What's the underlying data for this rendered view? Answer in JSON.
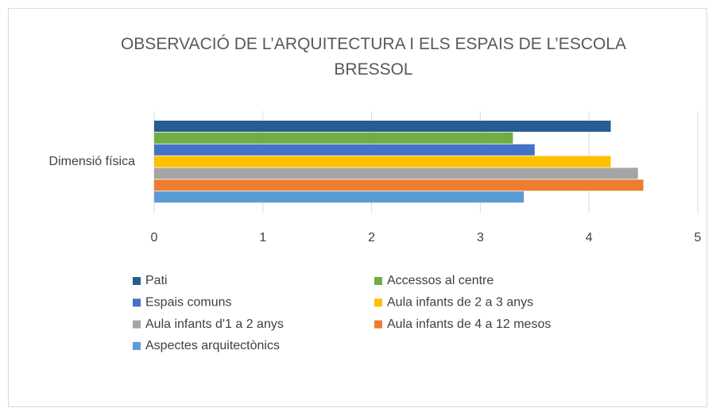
{
  "chart_data": {
    "type": "hbar",
    "title": "OBSERVACIÓ DE L’ARQUITECTURA I ELS ESPAIS DE L’ESCOLA BRESSOL",
    "categories": [
      "Dimensió física"
    ],
    "series": [
      {
        "name": "Pati",
        "color": "#255e91",
        "values": [
          4.2
        ]
      },
      {
        "name": "Accessos al centre",
        "color": "#70ad47",
        "values": [
          3.3
        ]
      },
      {
        "name": "Espais comuns",
        "color": "#4472c4",
        "values": [
          3.5
        ]
      },
      {
        "name": "Aula infants de 2 a 3 anys",
        "color": "#ffc000",
        "values": [
          4.2
        ]
      },
      {
        "name": "Aula infants d'1 a 2 anys",
        "color": "#a5a5a5",
        "values": [
          4.45
        ]
      },
      {
        "name": "Aula infants de 4 a 12 mesos",
        "color": "#ed7d31",
        "values": [
          4.5
        ]
      },
      {
        "name": "Aspectes arquitectònics",
        "color": "#5b9bd5",
        "values": [
          3.4
        ]
      }
    ],
    "xlim": [
      0,
      5
    ],
    "xticks": [
      0,
      1,
      2,
      3,
      4,
      5
    ],
    "grid": true,
    "legend": "bottom"
  }
}
